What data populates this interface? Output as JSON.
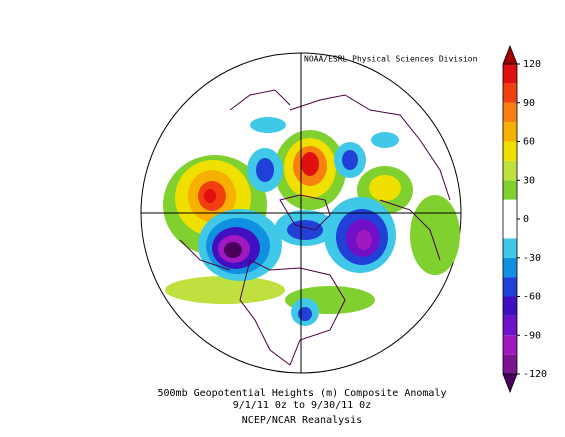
{
  "map": {
    "credit": "NOAA/ESRL Physical Sciences Division",
    "title": "500mb Geopotential Heights (m)   Composite Anomaly",
    "period": "9/1/11 0z  to 9/30/11 0z",
    "source": "NCEP/NCAR Reanalysis"
  },
  "colorbar": {
    "lim": [
      -120,
      120
    ],
    "ticks": [
      120,
      90,
      60,
      30,
      0,
      -30,
      -60,
      -90,
      -120
    ],
    "over_color": "#a00000",
    "under_color": "#4a0058",
    "colors": [
      "#7a1490",
      "#a018c0",
      "#7010c8",
      "#4010c0",
      "#2040d8",
      "#1090e0",
      "#40c8e8",
      "#ffffff",
      "#ffffff",
      "#80d030",
      "#c0e040",
      "#f0e000",
      "#f8b000",
      "#f88010",
      "#f04010",
      "#e01010"
    ]
  }
}
